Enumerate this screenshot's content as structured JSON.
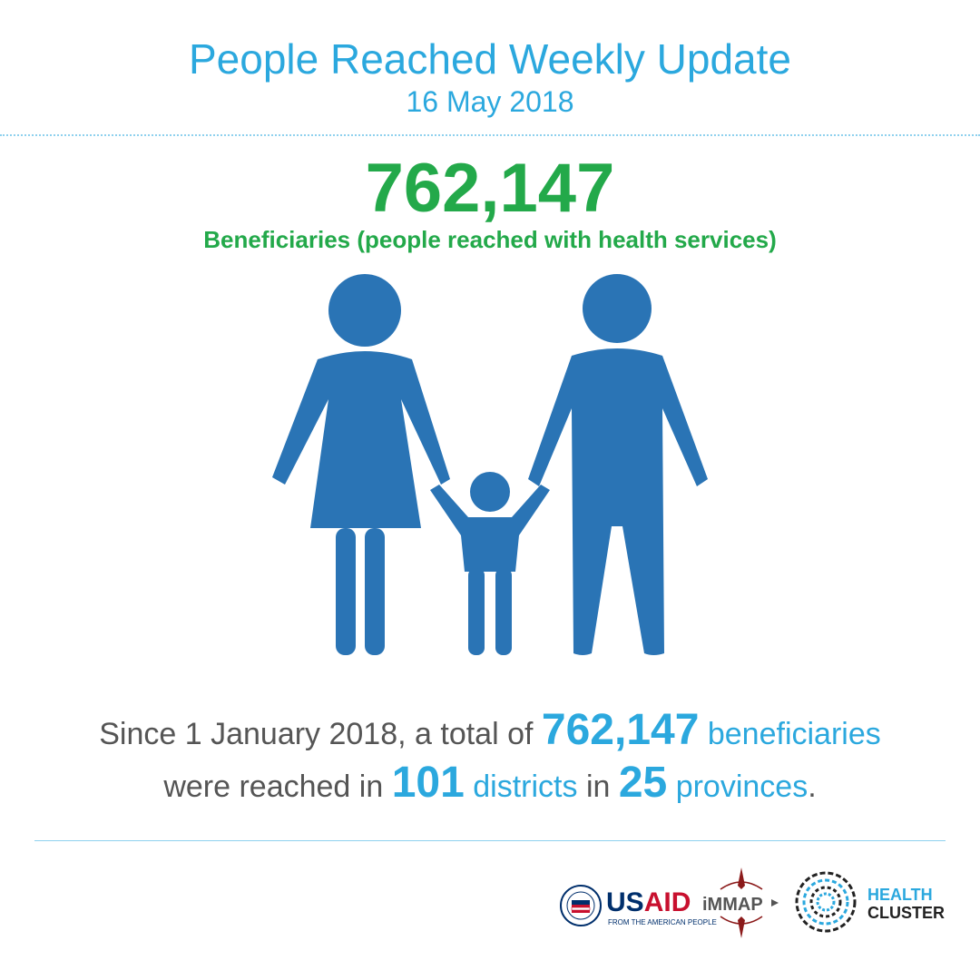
{
  "header": {
    "title": "People Reached Weekly Update",
    "date": "16 May 2018"
  },
  "headline": {
    "number": "762,147",
    "caption": "Beneficiaries (people reached with health services)"
  },
  "illustration": {
    "icon": "family-icon",
    "color": "#2a74b5"
  },
  "summary": {
    "line1_prefix": "Since 1 January 2018, a total of ",
    "beneficiaries_number": "762,147",
    "beneficiaries_word": "beneficiaries",
    "line2_prefix": "were reached in ",
    "districts_number": "101",
    "districts_word": "districts",
    "in_word": "in",
    "provinces_number": "25",
    "provinces_word": "provinces",
    "period": "."
  },
  "logos": {
    "usaid": {
      "name_part1": "US",
      "name_part2": "AID",
      "tagline": "FROM THE AMERICAN PEOPLE"
    },
    "immap": {
      "name": "iMMAP"
    },
    "health_cluster": {
      "line1": "HEALTH",
      "line2": "CLUSTER"
    }
  },
  "colors": {
    "accent_blue": "#2ba8de",
    "accent_green": "#23a94a",
    "text_gray": "#555555",
    "icon_blue": "#2a74b5"
  }
}
